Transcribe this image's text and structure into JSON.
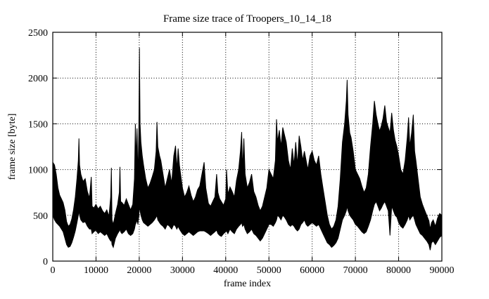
{
  "figure": {
    "background_color": "#ffffff",
    "foreground_color": "#000000"
  },
  "chart_data": {
    "type": "line",
    "title": "Frame size trace of Troopers_10_14_18",
    "xlabel": "frame index",
    "ylabel": "frame size [byte]",
    "xlim": [
      0,
      90000
    ],
    "ylim": [
      0,
      2500
    ],
    "xticks": [
      0,
      10000,
      20000,
      30000,
      40000,
      50000,
      60000,
      70000,
      80000,
      90000
    ],
    "yticks": [
      0,
      500,
      1000,
      1500,
      2000,
      2500
    ],
    "grid": true,
    "grid_style": "dotted",
    "legend": "none",
    "line_color": "#000000",
    "series": [
      {
        "name": "frame size",
        "representation": "envelope_minmax",
        "note": "dense trace of ~90000 frames; points are [frame, min, max] over local buckets read from the plot",
        "points": [
          [
            0,
            500,
            1080
          ],
          [
            400,
            450,
            1050
          ],
          [
            800,
            420,
            950
          ],
          [
            1200,
            400,
            800
          ],
          [
            1600,
            380,
            720
          ],
          [
            2000,
            350,
            680
          ],
          [
            2400,
            320,
            640
          ],
          [
            2800,
            250,
            560
          ],
          [
            3200,
            180,
            430
          ],
          [
            3600,
            150,
            380
          ],
          [
            4000,
            160,
            400
          ],
          [
            4400,
            200,
            460
          ],
          [
            4800,
            260,
            560
          ],
          [
            5200,
            330,
            700
          ],
          [
            5600,
            420,
            900
          ],
          [
            5900,
            500,
            1100
          ],
          [
            6050,
            550,
            1340
          ],
          [
            6200,
            500,
            1050
          ],
          [
            6500,
            450,
            950
          ],
          [
            7000,
            420,
            870
          ],
          [
            7500,
            430,
            900
          ],
          [
            8000,
            380,
            760
          ],
          [
            8500,
            350,
            690
          ],
          [
            8900,
            350,
            920
          ],
          [
            9100,
            300,
            600
          ],
          [
            9500,
            320,
            580
          ],
          [
            10000,
            340,
            620
          ],
          [
            10500,
            300,
            570
          ],
          [
            11000,
            320,
            600
          ],
          [
            11500,
            300,
            550
          ],
          [
            12000,
            280,
            520
          ],
          [
            12500,
            300,
            560
          ],
          [
            13000,
            250,
            490
          ],
          [
            13400,
            220,
            700
          ],
          [
            13550,
            250,
            1020
          ],
          [
            13700,
            180,
            450
          ],
          [
            14000,
            150,
            400
          ],
          [
            14500,
            250,
            520
          ],
          [
            15000,
            300,
            620
          ],
          [
            15400,
            330,
            750
          ],
          [
            15550,
            350,
            1030
          ],
          [
            15700,
            320,
            650
          ],
          [
            16000,
            300,
            640
          ],
          [
            16500,
            320,
            610
          ],
          [
            17000,
            350,
            680
          ],
          [
            17500,
            300,
            620
          ],
          [
            18000,
            280,
            560
          ],
          [
            18500,
            300,
            620
          ],
          [
            18900,
            350,
            900
          ],
          [
            19100,
            400,
            1500
          ],
          [
            19300,
            420,
            1100
          ],
          [
            19500,
            450,
            1450
          ],
          [
            19700,
            400,
            900
          ],
          [
            19900,
            500,
            1400
          ],
          [
            20050,
            600,
            2330
          ],
          [
            20200,
            550,
            1500
          ],
          [
            20400,
            500,
            1300
          ],
          [
            20700,
            450,
            1150
          ],
          [
            21000,
            420,
            1050
          ],
          [
            21500,
            400,
            900
          ],
          [
            22000,
            380,
            800
          ],
          [
            22500,
            400,
            850
          ],
          [
            23000,
            420,
            920
          ],
          [
            23500,
            450,
            1000
          ],
          [
            23900,
            480,
            1200
          ],
          [
            24100,
            500,
            1520
          ],
          [
            24300,
            450,
            1250
          ],
          [
            24700,
            420,
            1150
          ],
          [
            25000,
            400,
            1100
          ],
          [
            25500,
            380,
            950
          ],
          [
            26000,
            350,
            800
          ],
          [
            26500,
            400,
            900
          ],
          [
            27000,
            380,
            1000
          ],
          [
            27500,
            350,
            850
          ],
          [
            28000,
            400,
            1150
          ],
          [
            28400,
            380,
            1260
          ],
          [
            28700,
            350,
            1000
          ],
          [
            29000,
            380,
            1230
          ],
          [
            29300,
            350,
            1050
          ],
          [
            29700,
            320,
            900
          ],
          [
            30000,
            300,
            800
          ],
          [
            30500,
            280,
            700
          ],
          [
            31000,
            300,
            750
          ],
          [
            31500,
            320,
            820
          ],
          [
            32000,
            300,
            720
          ],
          [
            32500,
            280,
            650
          ],
          [
            33000,
            300,
            700
          ],
          [
            33500,
            320,
            780
          ],
          [
            34000,
            330,
            820
          ],
          [
            35000,
            330,
            1080
          ],
          [
            35400,
            320,
            800
          ],
          [
            36000,
            300,
            630
          ],
          [
            36500,
            280,
            600
          ],
          [
            37000,
            300,
            650
          ],
          [
            37500,
            320,
            700
          ],
          [
            37900,
            340,
            950
          ],
          [
            38200,
            300,
            750
          ],
          [
            38600,
            280,
            680
          ],
          [
            39000,
            270,
            650
          ],
          [
            39500,
            300,
            610
          ],
          [
            40000,
            320,
            680
          ],
          [
            40200,
            330,
            1000
          ],
          [
            40500,
            300,
            730
          ],
          [
            41000,
            350,
            810
          ],
          [
            41500,
            320,
            760
          ],
          [
            42000,
            300,
            700
          ],
          [
            42500,
            350,
            880
          ],
          [
            43000,
            380,
            1000
          ],
          [
            43400,
            400,
            1200
          ],
          [
            43700,
            420,
            1410
          ],
          [
            43900,
            380,
            1000
          ],
          [
            44200,
            400,
            1340
          ],
          [
            44500,
            350,
            950
          ],
          [
            45000,
            300,
            800
          ],
          [
            45500,
            320,
            860
          ],
          [
            46000,
            350,
            950
          ],
          [
            46500,
            300,
            760
          ],
          [
            47000,
            280,
            700
          ],
          [
            47500,
            250,
            610
          ],
          [
            48000,
            220,
            550
          ],
          [
            48500,
            250,
            600
          ],
          [
            49000,
            300,
            700
          ],
          [
            49500,
            350,
            800
          ],
          [
            50000,
            400,
            1000
          ],
          [
            50500,
            400,
            950
          ],
          [
            51000,
            380,
            900
          ],
          [
            51500,
            420,
            1100
          ],
          [
            51750,
            450,
            1550
          ],
          [
            52000,
            500,
            1300
          ],
          [
            52400,
            480,
            1430
          ],
          [
            52800,
            450,
            1250
          ],
          [
            53200,
            500,
            1460
          ],
          [
            53600,
            480,
            1380
          ],
          [
            54000,
            450,
            1300
          ],
          [
            54500,
            400,
            1100
          ],
          [
            55000,
            380,
            1000
          ],
          [
            55400,
            400,
            1230
          ],
          [
            55800,
            380,
            1050
          ],
          [
            56200,
            350,
            1300
          ],
          [
            56600,
            330,
            1050
          ],
          [
            57000,
            350,
            1370
          ],
          [
            57400,
            400,
            1250
          ],
          [
            57800,
            420,
            1100
          ],
          [
            58200,
            450,
            1200
          ],
          [
            58600,
            400,
            1100
          ],
          [
            59000,
            380,
            1000
          ],
          [
            59500,
            400,
            1150
          ],
          [
            60000,
            420,
            1200
          ],
          [
            60500,
            400,
            1100
          ],
          [
            61000,
            380,
            1050
          ],
          [
            61500,
            400,
            1150
          ],
          [
            62000,
            350,
            950
          ],
          [
            62500,
            300,
            800
          ],
          [
            63000,
            250,
            650
          ],
          [
            63500,
            200,
            500
          ],
          [
            64000,
            180,
            400
          ],
          [
            64500,
            150,
            350
          ],
          [
            65000,
            170,
            380
          ],
          [
            65500,
            200,
            450
          ],
          [
            66000,
            250,
            600
          ],
          [
            66500,
            350,
            900
          ],
          [
            67000,
            450,
            1300
          ],
          [
            67500,
            500,
            1500
          ],
          [
            67900,
            550,
            1750
          ],
          [
            68100,
            600,
            1980
          ],
          [
            68300,
            550,
            1600
          ],
          [
            68700,
            500,
            1400
          ],
          [
            69000,
            480,
            1350
          ],
          [
            69500,
            450,
            1200
          ],
          [
            70000,
            400,
            1000
          ],
          [
            70500,
            380,
            950
          ],
          [
            71000,
            350,
            900
          ],
          [
            71500,
            320,
            820
          ],
          [
            72000,
            300,
            750
          ],
          [
            72500,
            320,
            800
          ],
          [
            73000,
            380,
            950
          ],
          [
            73500,
            450,
            1250
          ],
          [
            74000,
            550,
            1500
          ],
          [
            74400,
            620,
            1750
          ],
          [
            74800,
            650,
            1600
          ],
          [
            75200,
            600,
            1500
          ],
          [
            75600,
            550,
            1420
          ],
          [
            76000,
            580,
            1480
          ],
          [
            76400,
            620,
            1560
          ],
          [
            76800,
            650,
            1700
          ],
          [
            77200,
            600,
            1520
          ],
          [
            77600,
            550,
            1460
          ],
          [
            78000,
            280,
            1400
          ],
          [
            78400,
            600,
            1620
          ],
          [
            78800,
            550,
            1430
          ],
          [
            79200,
            500,
            1320
          ],
          [
            79600,
            480,
            1250
          ],
          [
            80000,
            420,
            1150
          ],
          [
            80500,
            380,
            1000
          ],
          [
            81000,
            360,
            950
          ],
          [
            81500,
            400,
            1100
          ],
          [
            82000,
            450,
            1350
          ],
          [
            82300,
            500,
            1570
          ],
          [
            82600,
            450,
            1250
          ],
          [
            83000,
            480,
            1400
          ],
          [
            83400,
            500,
            1600
          ],
          [
            83700,
            450,
            1200
          ],
          [
            84000,
            400,
            1100
          ],
          [
            84500,
            350,
            900
          ],
          [
            85000,
            300,
            700
          ],
          [
            85500,
            280,
            620
          ],
          [
            86000,
            250,
            560
          ],
          [
            86500,
            220,
            500
          ],
          [
            87000,
            180,
            440
          ],
          [
            87300,
            120,
            350
          ],
          [
            87600,
            200,
            420
          ],
          [
            88000,
            220,
            450
          ],
          [
            88500,
            180,
            380
          ],
          [
            89000,
            220,
            470
          ],
          [
            89500,
            260,
            520
          ],
          [
            90000,
            280,
            500
          ]
        ]
      }
    ]
  }
}
